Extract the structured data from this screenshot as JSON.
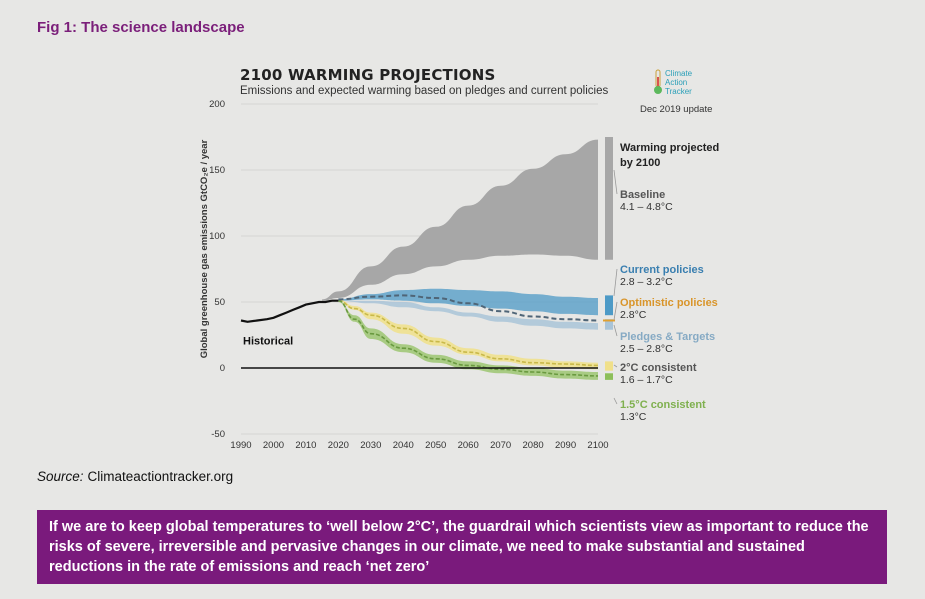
{
  "figure_label": "Fig 1: The science landscape",
  "source": {
    "prefix": "Source:",
    "text": "Climateactiontracker.org"
  },
  "callout_text": "If we are to keep global temperatures to ‘well below 2°C’, the guardrail which scientists view as important to reduce the risks of severe, irreversible and pervasive changes in our climate, we need to make substantial and sustained reductions in the rate of emissions and reach ‘net zero’",
  "logo": {
    "icon": "thermometer-icon",
    "lines": [
      "Climate",
      "Action",
      "Tracker"
    ]
  },
  "update_note": "Dec 2019 update",
  "colors": {
    "baseline": "#a7a7a7",
    "current_policies": "#4d9ac6",
    "optimistic_policies": "#e0a030",
    "pledges": "#a9c4d8",
    "two_deg": "#f0e08a",
    "one_five": "#8dbf5a",
    "historical": "#111111",
    "callout_bg": "#7a1a7c",
    "figure_label": "#7b1f7a"
  },
  "chart_data": {
    "type": "area",
    "title": "2100 WARMING PROJECTIONS",
    "subtitle": "Emissions and expected warming based on pledges and current policies",
    "ylabel": "Global greenhouse gas emissions  GtCO₂e / year",
    "xlabel": "",
    "xlim": [
      1990,
      2100
    ],
    "ylim": [
      -50,
      200
    ],
    "x_ticks": [
      1990,
      2000,
      2010,
      2020,
      2030,
      2040,
      2050,
      2060,
      2070,
      2080,
      2090,
      2100
    ],
    "y_ticks": [
      -50,
      0,
      50,
      100,
      150,
      200
    ],
    "grid": "horizontal",
    "right_header": [
      "Warming projected",
      "by 2100"
    ],
    "historical": {
      "name": "Historical",
      "x": [
        1990,
        1992,
        1995,
        1998,
        2000,
        2002,
        2004,
        2006,
        2008,
        2010,
        2012,
        2014,
        2016,
        2018,
        2020
      ],
      "y": [
        36,
        35,
        36,
        37,
        38,
        40,
        42,
        44,
        46,
        48,
        49,
        50,
        50,
        51,
        51
      ]
    },
    "series": [
      {
        "name": "Baseline",
        "range_label": "4.1 – 4.8°C",
        "x": [
          2015,
          2020,
          2030,
          2040,
          2050,
          2060,
          2070,
          2080,
          2090,
          2100
        ],
        "upper": [
          52,
          58,
          77,
          92,
          107,
          123,
          138,
          151,
          162,
          173
        ],
        "lower": [
          51,
          53,
          63,
          71,
          77,
          82,
          85,
          86,
          85,
          82
        ]
      },
      {
        "name": "Current policies",
        "range_label": "2.8 – 3.2°C",
        "x": [
          2020,
          2030,
          2040,
          2050,
          2060,
          2070,
          2080,
          2090,
          2100
        ],
        "upper": [
          52,
          56,
          59,
          60,
          59,
          58,
          56,
          54,
          53
        ],
        "lower": [
          51,
          52,
          51,
          49,
          47,
          45,
          43,
          41,
          40
        ]
      },
      {
        "name": "Optimistic policies",
        "range_label": "2.8°C",
        "x": [
          2020,
          2030,
          2040,
          2050,
          2060,
          2070,
          2080,
          2090,
          2100
        ],
        "values": [
          52,
          54,
          55,
          53,
          49,
          43,
          39,
          37,
          36
        ]
      },
      {
        "name": "Pledges & Targets",
        "range_label": "2.5 – 2.8°C",
        "x": [
          2020,
          2030,
          2040,
          2050,
          2060,
          2070,
          2080,
          2090,
          2100
        ],
        "upper": [
          51,
          51,
          50,
          46,
          42,
          39,
          37,
          35,
          34
        ],
        "lower": [
          51,
          49,
          46,
          43,
          39,
          35,
          32,
          30,
          29
        ]
      },
      {
        "name": "2°C consistent",
        "range_label": "1.6 – 1.7°C",
        "x": [
          2020,
          2025,
          2030,
          2040,
          2050,
          2060,
          2070,
          2080,
          2090,
          2100
        ],
        "upper": [
          52,
          47,
          42,
          33,
          23,
          15,
          10,
          7,
          5,
          4
        ],
        "lower": [
          51,
          44,
          37,
          26,
          17,
          10,
          5,
          2,
          0,
          -1
        ],
        "values": [
          51,
          45,
          40,
          30,
          20,
          12,
          7,
          4,
          3,
          2
        ]
      },
      {
        "name": "1.5°C consistent",
        "range_label": "1.3°C",
        "x": [
          2020,
          2025,
          2030,
          2040,
          2050,
          2060,
          2070,
          2080,
          2090,
          2100
        ],
        "upper": [
          51,
          40,
          30,
          18,
          10,
          5,
          2,
          0,
          -2,
          -3
        ],
        "lower": [
          50,
          35,
          22,
          12,
          4,
          -1,
          -4,
          -6,
          -8,
          -9
        ],
        "values": [
          51,
          37,
          26,
          15,
          7,
          2,
          -1,
          -3,
          -5,
          -6
        ]
      }
    ]
  }
}
